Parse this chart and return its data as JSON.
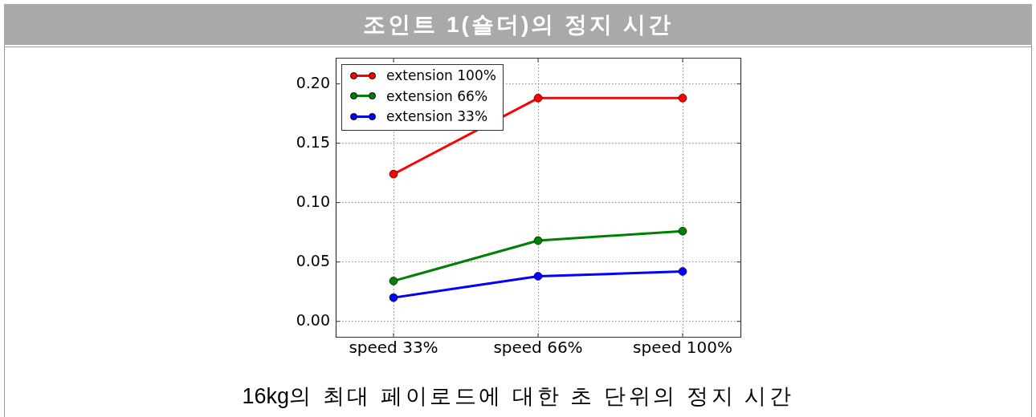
{
  "chart_data": {
    "type": "line",
    "title": "조인트 1(숄더)의 정지 시간",
    "annotations": [
      "16kg의 최대 페이로드에 대한 초 단위의 정지 시간"
    ],
    "categories": [
      "speed 33%",
      "speed 66%",
      "speed 100%"
    ],
    "series": [
      {
        "name": "extension 100%",
        "color": "#ff0000",
        "values": [
          0.124,
          0.188,
          0.188
        ]
      },
      {
        "name": "extension 66%",
        "color": "#008000",
        "values": [
          0.034,
          0.068,
          0.076
        ]
      },
      {
        "name": "extension 33%",
        "color": "#0000ff",
        "values": [
          0.02,
          0.038,
          0.042
        ]
      }
    ],
    "ylim": [
      -0.013,
      0.222
    ],
    "yticks": [
      {
        "value": 0,
        "label": "0.00"
      },
      0.05,
      {
        "value": 0.1,
        "label": "0.10"
      },
      0.15,
      {
        "value": 0.2,
        "label": "0.20"
      }
    ],
    "grid": true,
    "legend": "top left",
    "marker": "circle",
    "line_style": "solid"
  }
}
